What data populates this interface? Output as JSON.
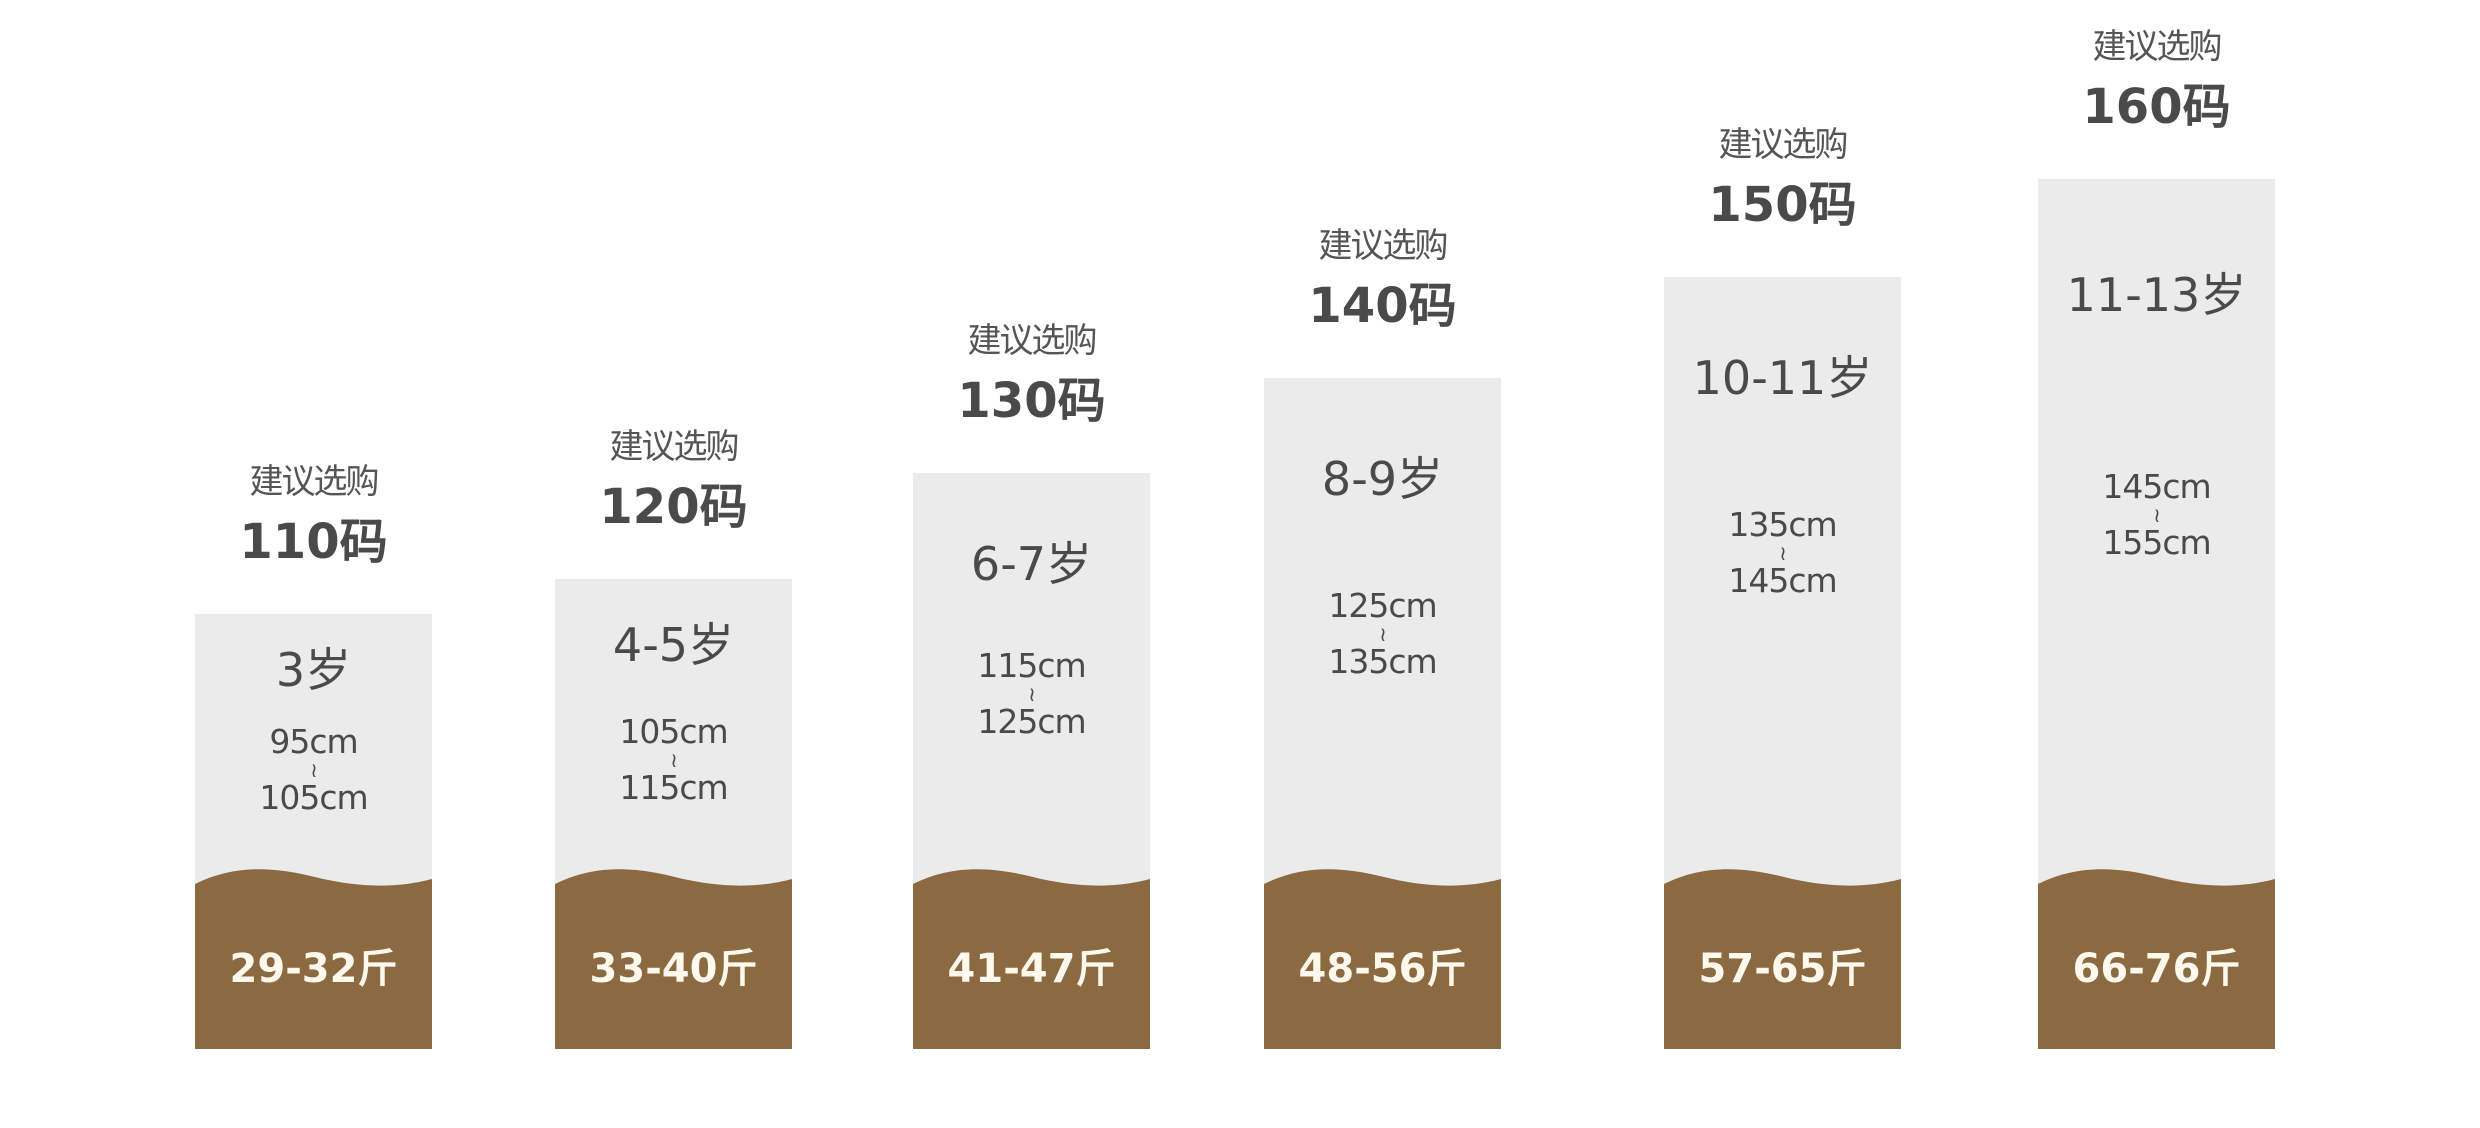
{
  "colors": {
    "panel": "#ebebeb",
    "band": "#8b6a42",
    "text": "#4a4a4a",
    "weight_text": "#fff8ec"
  },
  "columns": [
    {
      "suggest": "建议选购",
      "size": "110码",
      "age": "3岁",
      "height_min": "95cm",
      "tilde": "≀",
      "height_max": "105cm",
      "weight": "29-32斤"
    },
    {
      "suggest": "建议选购",
      "size": "120码",
      "age": "4-5岁",
      "height_min": "105cm",
      "tilde": "≀",
      "height_max": "115cm",
      "weight": "33-40斤"
    },
    {
      "suggest": "建议选购",
      "size": "130码",
      "age": "6-7岁",
      "height_min": "115cm",
      "tilde": "≀",
      "height_max": "125cm",
      "weight": "41-47斤"
    },
    {
      "suggest": "建议选购",
      "size": "140码",
      "age": "8-9岁",
      "height_min": "125cm",
      "tilde": "≀",
      "height_max": "135cm",
      "weight": "48-56斤"
    },
    {
      "suggest": "建议选购",
      "size": "150码",
      "age": "10-11岁",
      "height_min": "135cm",
      "tilde": "≀",
      "height_max": "145cm",
      "weight": "57-65斤"
    },
    {
      "suggest": "建议选购",
      "size": "160码",
      "age": "11-13岁",
      "height_min": "145cm",
      "tilde": "≀",
      "height_max": "155cm",
      "weight": "66-76斤"
    }
  ]
}
